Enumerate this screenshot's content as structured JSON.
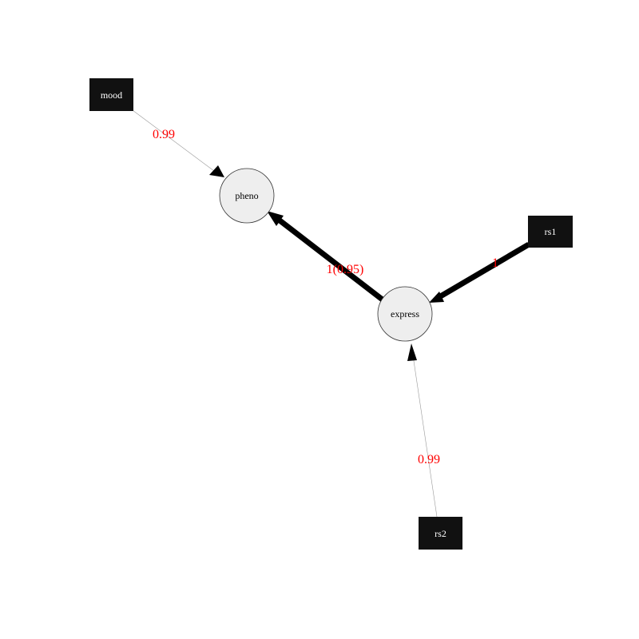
{
  "colors": {
    "box_fill": "#111111",
    "box_text": "#ffffff",
    "circle_fill": "#eeeeee",
    "circle_stroke": "#333333",
    "circle_text": "#000000",
    "edge_thin": "#999999",
    "edge_thick": "#000000",
    "edge_label": "#ff0000"
  },
  "nodes": {
    "mood": {
      "label": "mood",
      "shape": "box"
    },
    "rs1": {
      "label": "rs1",
      "shape": "box"
    },
    "rs2": {
      "label": "rs2",
      "shape": "box"
    },
    "pheno": {
      "label": "pheno",
      "shape": "circle"
    },
    "express": {
      "label": "express",
      "shape": "circle"
    }
  },
  "edges": [
    {
      "from": "mood",
      "to": "pheno",
      "label": "0.99",
      "weight": "thin"
    },
    {
      "from": "express",
      "to": "pheno",
      "label": "1(0.95)",
      "weight": "thick"
    },
    {
      "from": "rs1",
      "to": "express",
      "label": "1",
      "weight": "thick"
    },
    {
      "from": "rs2",
      "to": "express",
      "label": "0.99",
      "weight": "thin"
    }
  ]
}
